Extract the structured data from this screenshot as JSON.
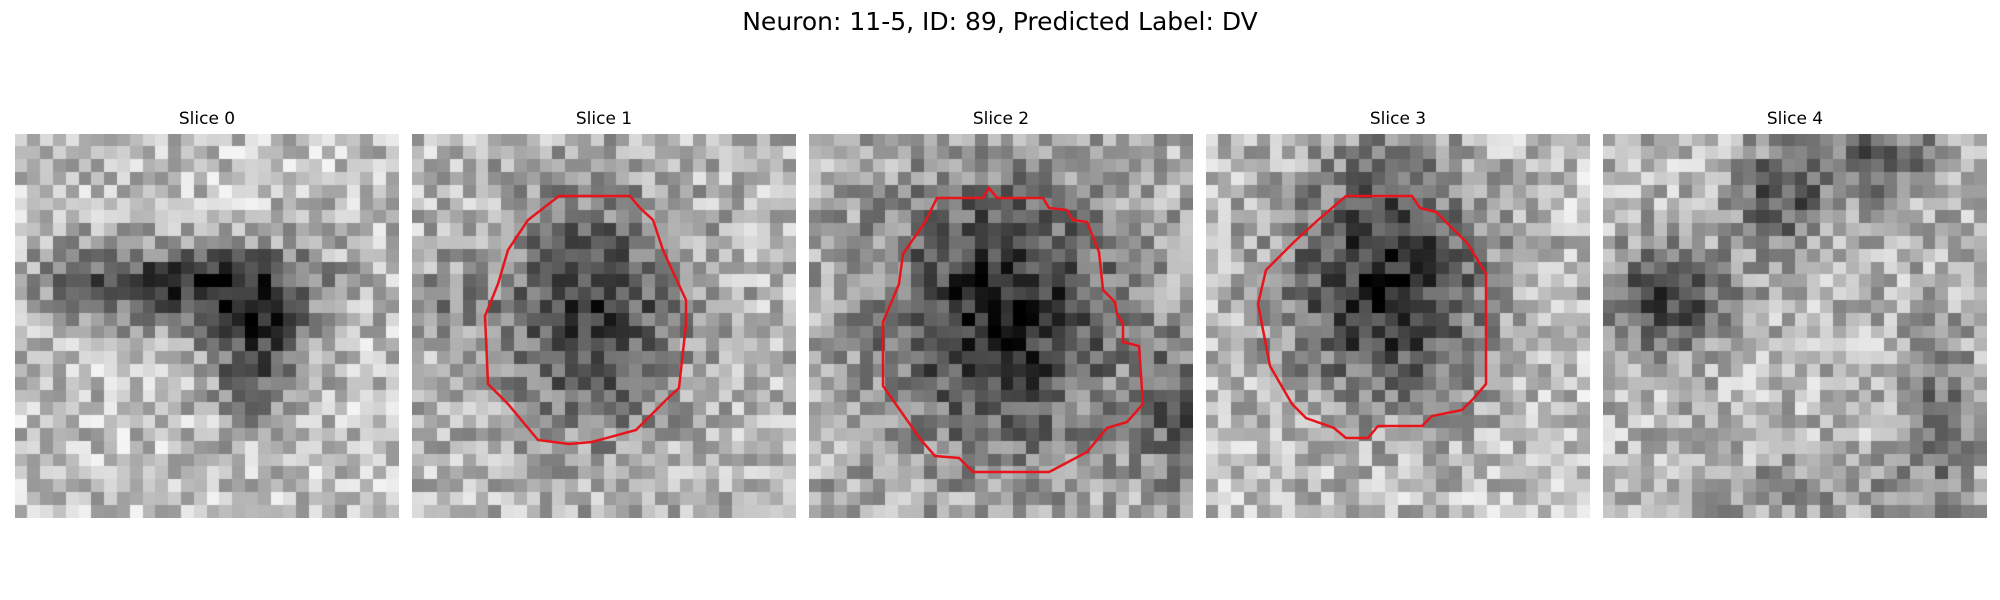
{
  "figure": {
    "title": "Neuron: 11-5, ID: 89, Predicted Label: DV"
  },
  "panels": [
    {
      "title": "Slice 0",
      "has_contour": false,
      "contour_color": "#e8141b"
    },
    {
      "title": "Slice 1",
      "has_contour": true,
      "contour_color": "#e8141b"
    },
    {
      "title": "Slice 2",
      "has_contour": true,
      "contour_color": "#e8141b"
    },
    {
      "title": "Slice 3",
      "has_contour": true,
      "contour_color": "#e8141b"
    },
    {
      "title": "Slice 4",
      "has_contour": false,
      "contour_color": "#e8141b"
    }
  ]
}
